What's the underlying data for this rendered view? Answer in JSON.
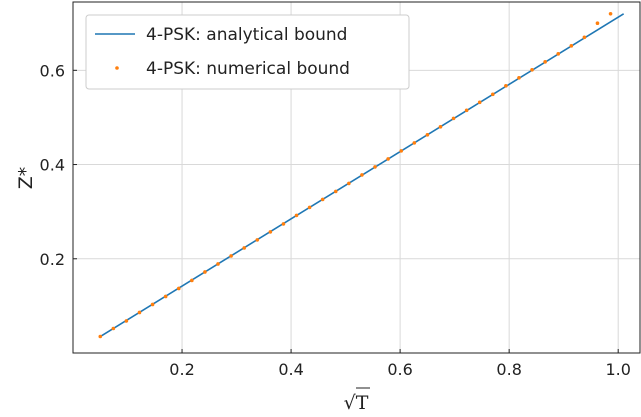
{
  "chart_data": {
    "type": "line",
    "xlabel": "√T",
    "ylabel": "Z*",
    "xlim": [
      0.0,
      1.04
    ],
    "ylim": [
      0.0,
      0.745
    ],
    "xticks": [
      "0.2",
      "0.4",
      "0.6",
      "0.8",
      "1.0"
    ],
    "xtick_values": [
      0.2,
      0.4,
      0.6,
      0.8,
      1.0
    ],
    "yticks": [
      "0.2",
      "0.4",
      "0.6"
    ],
    "ytick_values": [
      0.2,
      0.4,
      0.6
    ],
    "grid": true,
    "legend_position": "top-left",
    "series": [
      {
        "name": "4-PSK: analytical bound",
        "style": "line",
        "color": "#1f77b4",
        "x": [
          0.05,
          1.01
        ],
        "y": [
          0.035,
          0.72
        ]
      },
      {
        "name": "4-PSK: numerical bound",
        "style": "markers",
        "color": "#ff7f0e",
        "x": [
          0.05,
          0.074,
          0.098,
          0.122,
          0.146,
          0.17,
          0.194,
          0.218,
          0.242,
          0.266,
          0.29,
          0.314,
          0.338,
          0.362,
          0.386,
          0.41,
          0.434,
          0.458,
          0.482,
          0.506,
          0.53,
          0.554,
          0.578,
          0.602,
          0.626,
          0.65,
          0.674,
          0.698,
          0.722,
          0.746,
          0.77,
          0.794,
          0.818,
          0.842,
          0.866,
          0.89,
          0.914,
          0.938,
          0.962,
          0.986
        ],
        "y": [
          0.035,
          0.052,
          0.068,
          0.086,
          0.103,
          0.12,
          0.137,
          0.154,
          0.172,
          0.189,
          0.206,
          0.223,
          0.24,
          0.257,
          0.274,
          0.292,
          0.309,
          0.326,
          0.343,
          0.36,
          0.378,
          0.395,
          0.412,
          0.429,
          0.446,
          0.463,
          0.48,
          0.498,
          0.515,
          0.532,
          0.549,
          0.567,
          0.584,
          0.601,
          0.618,
          0.635,
          0.652,
          0.67,
          0.7,
          0.72
        ]
      }
    ]
  }
}
